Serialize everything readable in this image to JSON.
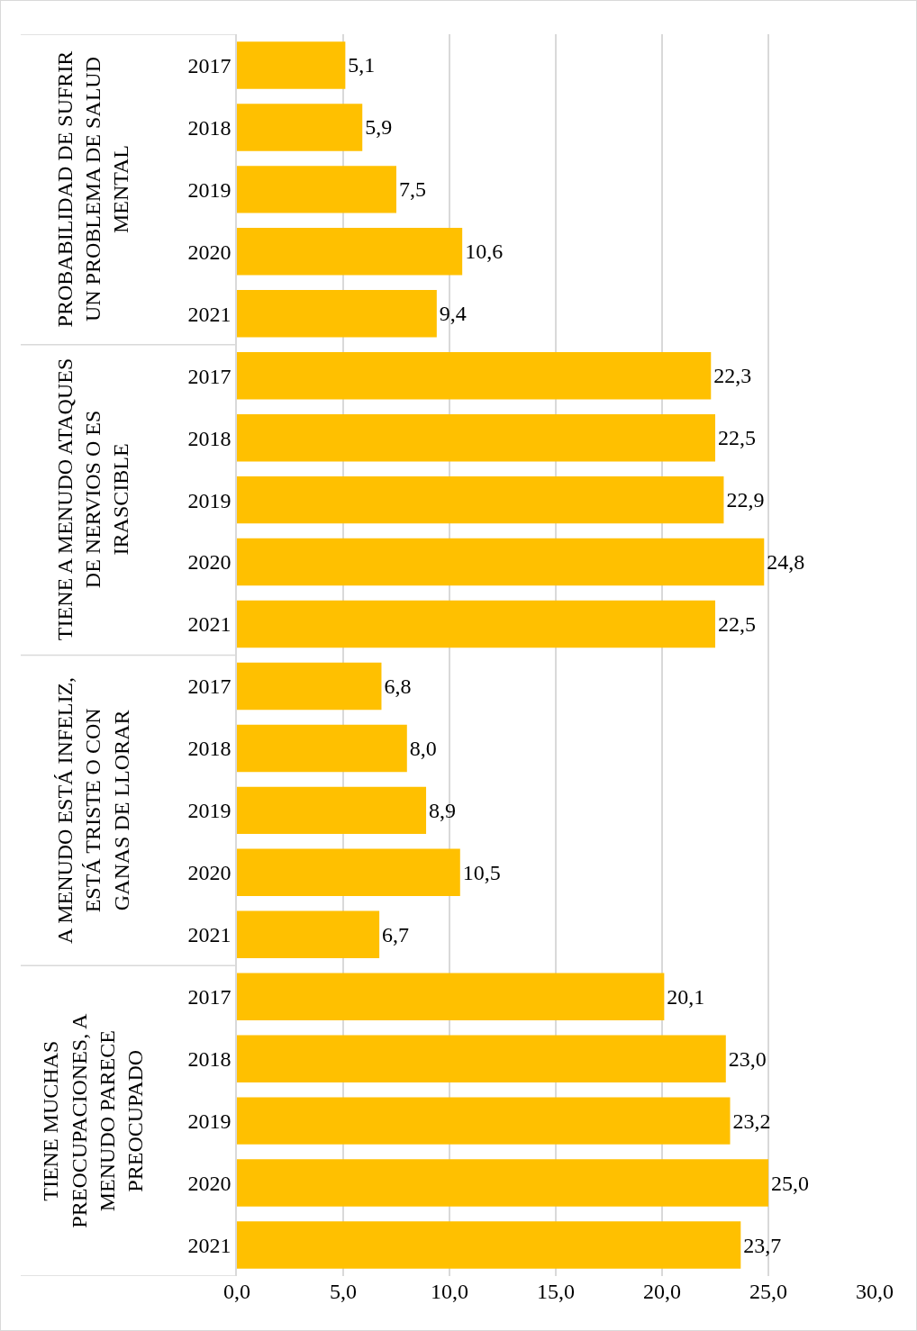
{
  "chart_data": {
    "type": "bar",
    "orientation": "horizontal",
    "categories": [
      "2017",
      "2018",
      "2019",
      "2020",
      "2021",
      "2017",
      "2018",
      "2019",
      "2020",
      "2021",
      "2017",
      "2018",
      "2019",
      "2020",
      "2021",
      "2017",
      "2018",
      "2019",
      "2020",
      "2021"
    ],
    "values": [
      5.1,
      5.9,
      7.5,
      10.6,
      9.4,
      22.3,
      22.5,
      22.9,
      24.8,
      22.5,
      6.8,
      8.0,
      8.9,
      10.5,
      6.7,
      20.1,
      23.0,
      23.2,
      25.0,
      23.7
    ],
    "value_labels": [
      "5,1",
      "5,9",
      "7,5",
      "10,6",
      "9,4",
      "22,3",
      "22,5",
      "22,9",
      "24,8",
      "22,5",
      "6,8",
      "8,0",
      "8,9",
      "10,5",
      "6,7",
      "20,1",
      "23,0",
      "23,2",
      "25,0",
      "23,7"
    ],
    "color": "#ffc000",
    "annotations": [
      "PROBABILIDAD DE SUFRIR UN PROBLEMA DE SALUD MENTAL",
      "TIENE A MENUDO ATAQUES DE NERVIOS O ES IRASCIBLE",
      "A MENUDO ESTÁ INFELIZ, ESTÁ TRISTE O CON GANAS DE LLORAR",
      "TIENE MUCHAS PREOCUPACIONES, A MENUDO PARECE PREOCUPADO"
    ],
    "xlim": [
      0,
      30
    ],
    "xticks": [
      {
        "value": 0,
        "label": "0,0"
      },
      {
        "value": 5,
        "label": "5,0"
      },
      {
        "value": 10,
        "label": "10,0"
      },
      {
        "value": 15,
        "label": "15,0"
      },
      {
        "value": 20,
        "label": "20,0"
      },
      {
        "value": 25,
        "label": "25,0"
      },
      {
        "value": 30,
        "label": "30,0"
      }
    ],
    "grid": "x",
    "legend": false
  }
}
